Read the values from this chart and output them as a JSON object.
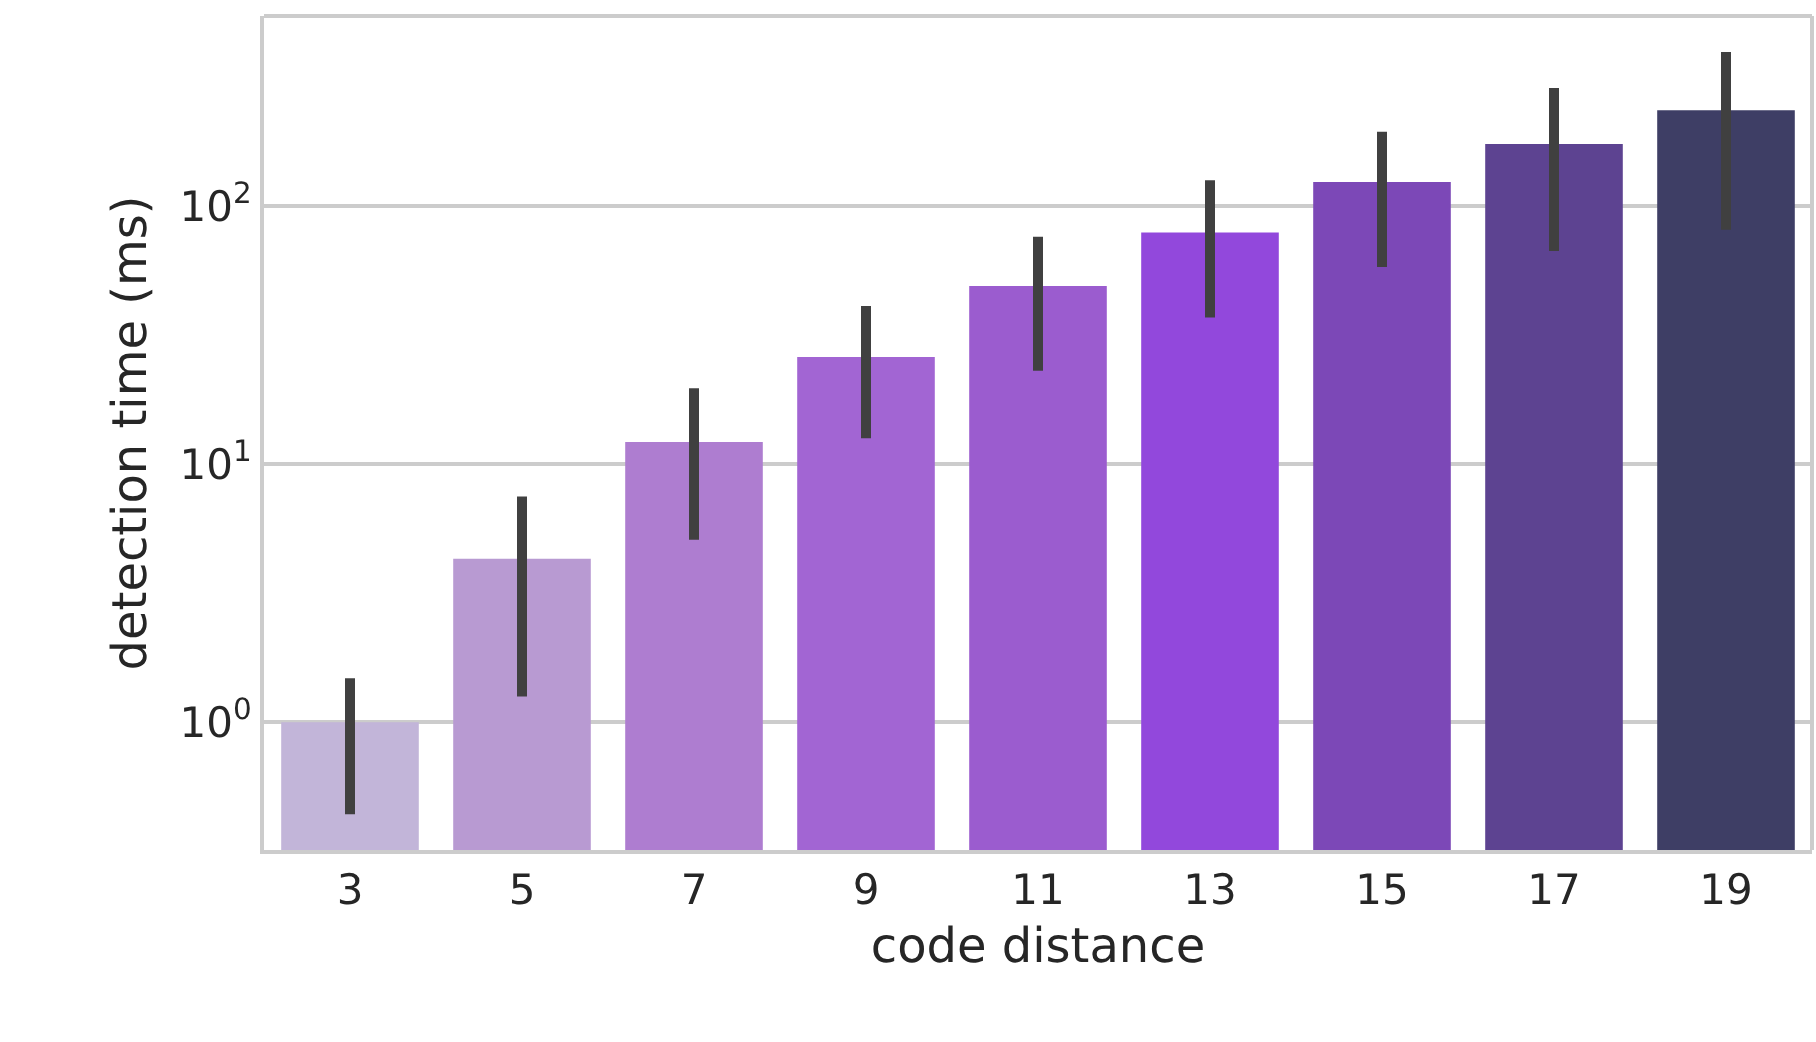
{
  "chart_data": {
    "type": "bar",
    "xlabel": "code distance",
    "ylabel": "detection time (ms)",
    "categories": [
      "3",
      "5",
      "7",
      "9",
      "11",
      "13",
      "15",
      "17",
      "19"
    ],
    "values": [
      1.0,
      4.3,
      12.2,
      26,
      49,
      79,
      124,
      174,
      235
    ],
    "errors": [
      [
        0.44,
        1.48
      ],
      [
        1.26,
        7.5
      ],
      [
        5.1,
        19.7
      ],
      [
        12.6,
        41
      ],
      [
        23,
        76
      ],
      [
        37,
        126
      ],
      [
        58,
        194
      ],
      [
        67,
        287
      ],
      [
        81,
        395
      ]
    ],
    "colors": [
      "#c2b5d9",
      "#b89ad2",
      "#ae7dd0",
      "#a265d3",
      "#9b5ccf",
      "#9248dc",
      "#7c48b7",
      "#5d4391",
      "#3e3e65"
    ],
    "log": true,
    "ylim": [
      0.32,
      545
    ],
    "yticks": [
      {
        "value": 1,
        "label": "10$^{0}$"
      },
      {
        "value": 10,
        "label": "10$^{1}$"
      },
      {
        "value": 100,
        "label": "10$^{2}$"
      }
    ],
    "grid": "y"
  }
}
